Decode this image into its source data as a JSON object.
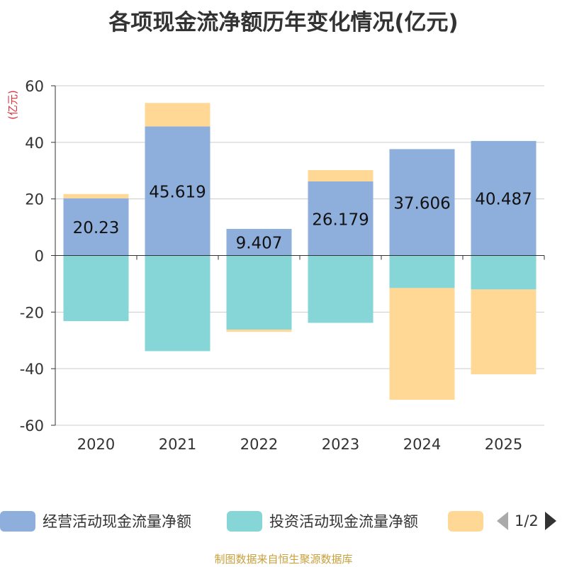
{
  "title": "各项现金流净额历年变化情况(亿元)",
  "source_note": "制图数据来自恒生聚源数据库",
  "colors": {
    "operating": "#8eaedb",
    "investing": "#86d5d7",
    "financing": "#ffd896",
    "axis": "#333333",
    "grid": "#cccccc",
    "unit": "#e0303c",
    "pager_active": "#333333",
    "pager_inactive": "#aaaaaa",
    "source": "#c8a03c"
  },
  "legend": {
    "items": [
      {
        "label": "经营活动现金流量净额",
        "color": "#8eaedb"
      },
      {
        "label": "投资活动现金流量净额",
        "color": "#86d5d7"
      },
      {
        "label": "",
        "color": "#ffd896"
      }
    ],
    "page": "1/2",
    "prev_icon": "triangle-left-icon",
    "next_icon": "triangle-right-icon"
  },
  "chart_data": {
    "type": "bar",
    "stacked": true,
    "title": "各项现金流净额历年变化情况(亿元)",
    "ylabel": "(亿元)",
    "xlabel": "",
    "ylim": [
      -60,
      60
    ],
    "yticks": [
      -60,
      -40,
      -20,
      0,
      20,
      40,
      60
    ],
    "ytick_labels": [
      "-60",
      "-40",
      "-20",
      "0",
      "20",
      "40",
      "60"
    ],
    "grid": true,
    "categories": [
      "2020",
      "2021",
      "2022",
      "2023",
      "2024",
      "2025"
    ],
    "series": [
      {
        "name": "经营活动现金流量净额",
        "color": "#8eaedb",
        "values": [
          20.23,
          45.619,
          9.407,
          26.179,
          37.606,
          40.487
        ],
        "labels": [
          "20.23",
          "45.619",
          "9.407",
          "26.179",
          "37.606",
          "40.487"
        ]
      },
      {
        "name": "投资活动现金流量净额",
        "color": "#86d5d7",
        "values": [
          -23.2,
          -33.8,
          -26.2,
          -23.8,
          -11.5,
          -12.0
        ]
      },
      {
        "name": "",
        "color": "#ffd896",
        "values": [
          1.5,
          8.3,
          -0.8,
          4.0,
          -39.5,
          -30.0
        ]
      }
    ]
  }
}
